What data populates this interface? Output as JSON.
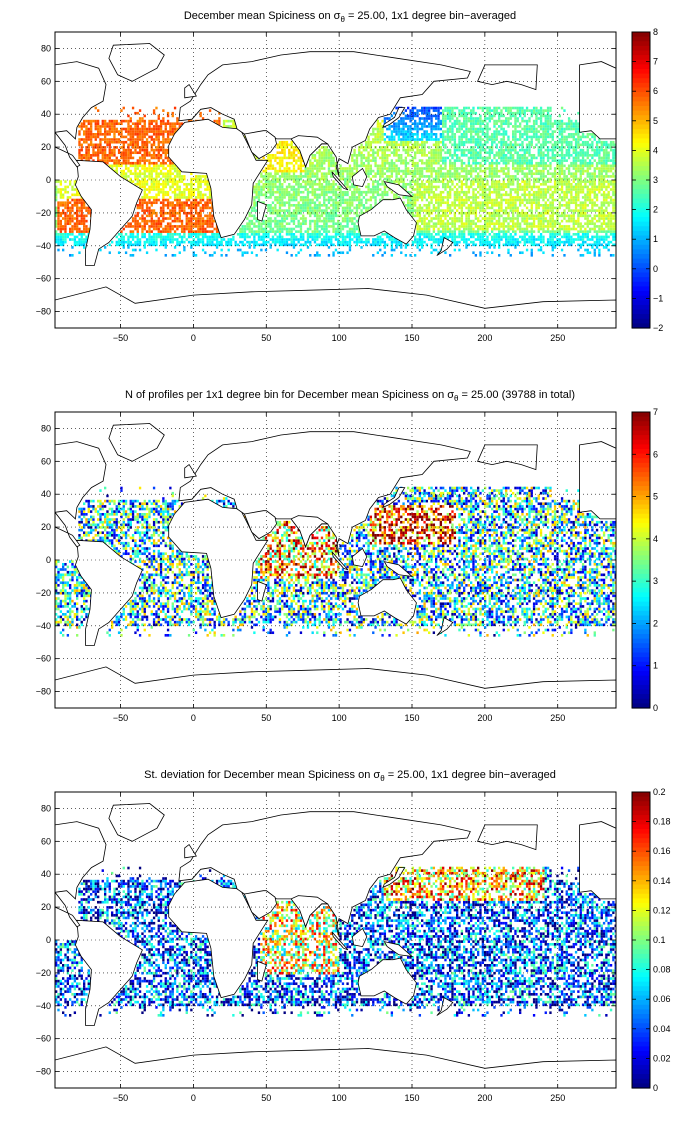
{
  "figure": {
    "background": "#ffffff",
    "colormap": "jet",
    "land_color": "#ffffff",
    "coastline_color": "#000000"
  },
  "chart_data": [
    {
      "type": "heatmap",
      "title_main": "December mean Spiciness on σ",
      "title_sub": "θ",
      "title_rest": " = 25.00, 1x1 degree bin−averaged",
      "xlabel": "",
      "ylabel": "",
      "xlim": [
        -95,
        290
      ],
      "ylim": [
        -90,
        90
      ],
      "xticks": [
        "−50",
        "0",
        "50",
        "100",
        "150",
        "200",
        "250"
      ],
      "xtick_values": [
        -50,
        0,
        50,
        100,
        150,
        200,
        250
      ],
      "yticks": [
        "80",
        "60",
        "40",
        "20",
        "0",
        "−20",
        "−40",
        "−60",
        "−80"
      ],
      "ytick_values": [
        80,
        60,
        40,
        20,
        0,
        -20,
        -40,
        -60,
        -80
      ],
      "grid": true,
      "colorbar": {
        "min": -2,
        "max": 8,
        "ticks": [
          "8",
          "7",
          "6",
          "5",
          "4",
          "3",
          "2",
          "1",
          "0",
          "−1",
          "−2"
        ],
        "tick_values": [
          8,
          7,
          6,
          5,
          4,
          3,
          2,
          1,
          0,
          -1,
          -2
        ]
      },
      "field": "spiciness",
      "regional_values": {
        "north_atlantic_subtropics": 5.5,
        "south_atlantic_subtropics": 5.8,
        "equatorial_atlantic": 4.0,
        "arabian_sea": 4.3,
        "bay_of_bengal": 3.0,
        "indian_ocean_south": 3.2,
        "kuroshio_extension": 0.5,
        "north_pacific": 2.5,
        "south_pacific_subtropics": 3.6,
        "southern_edge": 1.2
      }
    },
    {
      "type": "heatmap",
      "title_main": "N of profiles per 1x1 degree bin for December mean Spiciness on σ",
      "title_sub": "θ",
      "title_rest": " = 25.00 (39788 in total)",
      "xlabel": "",
      "ylabel": "",
      "xlim": [
        -95,
        290
      ],
      "ylim": [
        -90,
        90
      ],
      "xticks": [
        "−50",
        "0",
        "50",
        "100",
        "150",
        "200",
        "250"
      ],
      "xtick_values": [
        -50,
        0,
        50,
        100,
        150,
        200,
        250
      ],
      "yticks": [
        "80",
        "60",
        "40",
        "20",
        "0",
        "−20",
        "−40",
        "−60",
        "−80"
      ],
      "ytick_values": [
        80,
        60,
        40,
        20,
        0,
        -20,
        -40,
        -60,
        -80
      ],
      "grid": true,
      "colorbar": {
        "min": 0,
        "max": 7,
        "ticks": [
          "7",
          "6",
          "5",
          "4",
          "3",
          "2",
          "1",
          "0"
        ],
        "tick_values": [
          7,
          6,
          5,
          4,
          3,
          2,
          1,
          0
        ]
      },
      "field": "count",
      "total_profiles": 39788,
      "regional_values": {
        "western_pacific_subtropics": 6.5,
        "arabian_sea": 6.0,
        "bay_of_bengal": 5.5,
        "open_pacific": 3.0,
        "atlantic": 2.0,
        "indian_ocean_south": 2.5
      }
    },
    {
      "type": "heatmap",
      "title_main": "St. deviation for December mean Spiciness on σ",
      "title_sub": "θ",
      "title_rest": " = 25.00, 1x1 degree bin−averaged",
      "xlabel": "",
      "ylabel": "",
      "xlim": [
        -95,
        290
      ],
      "ylim": [
        -90,
        90
      ],
      "xticks": [
        "−50",
        "0",
        "50",
        "100",
        "150",
        "200",
        "250"
      ],
      "xtick_values": [
        -50,
        0,
        50,
        100,
        150,
        200,
        250
      ],
      "yticks": [
        "80",
        "60",
        "40",
        "20",
        "0",
        "−20",
        "−40",
        "−60",
        "−80"
      ],
      "ytick_values": [
        80,
        60,
        40,
        20,
        0,
        -20,
        -40,
        -60,
        -80
      ],
      "grid": true,
      "colorbar": {
        "min": 0,
        "max": 0.2,
        "ticks": [
          "0.2",
          "0.18",
          "0.16",
          "0.14",
          "0.12",
          "0.1",
          "0.08",
          "0.06",
          "0.04",
          "0.02",
          "0"
        ],
        "tick_values": [
          0.2,
          0.18,
          0.16,
          0.14,
          0.12,
          0.1,
          0.08,
          0.06,
          0.04,
          0.02,
          0
        ]
      },
      "field": "stdev",
      "regional_values": {
        "kuroshio_extension": 0.19,
        "arabian_sea": 0.18,
        "bay_of_bengal": 0.17,
        "open_pacific": 0.04,
        "atlantic": 0.06,
        "indian_ocean_south": 0.08
      }
    }
  ]
}
